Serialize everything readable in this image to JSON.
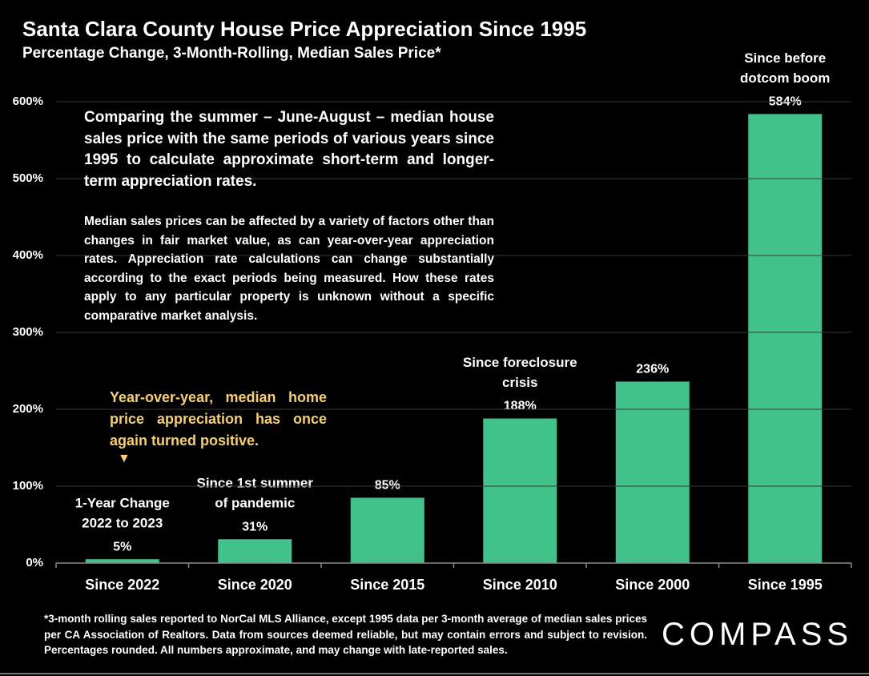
{
  "chart_data": {
    "type": "bar",
    "title": "Santa Clara County House Price Appreciation Since 1995",
    "subtitle": "Percentage Change, 3-Month-Rolling, Median Sales Price*",
    "categories": [
      "Since 2022",
      "Since 2020",
      "Since 2015",
      "Since 2010",
      "Since 2000",
      "Since 1995"
    ],
    "values": [
      5,
      31,
      85,
      188,
      236,
      584
    ],
    "value_labels": [
      "5%",
      "31%",
      "85%",
      "188%",
      "236%",
      "584%"
    ],
    "bar_annotations": [
      [
        "1-Year Change",
        "2022 to 2023"
      ],
      [
        "Since 1st summer",
        "of pandemic"
      ],
      null,
      [
        "Since foreclosure",
        "crisis"
      ],
      null,
      [
        "Since before",
        "dotcom boom"
      ]
    ],
    "color": "#40c28a",
    "ylim": [
      0,
      600
    ],
    "yticks": [
      {
        "value": 0,
        "label": "0%"
      },
      {
        "value": 100,
        "label": "100%"
      },
      {
        "value": 200,
        "label": "200%"
      },
      {
        "value": 300,
        "label": "300%"
      },
      {
        "value": 400,
        "label": "400%"
      },
      {
        "value": 500,
        "label": "500%"
      },
      {
        "value": 600,
        "label": "600%"
      }
    ],
    "grid": true,
    "notes": [
      "Comparing the summer – June-August – median house sales price with the same periods of various years since 1995 to calculate approximate short-term and longer-term appreciation rates.",
      "Median sales prices can be affected by a variety of factors other than changes in fair market value, as can year-over-year appreciation rates. Appreciation rate calculations can change substantially according to the exact periods being measured. How these rates apply to any particular property is unknown without a specific comparative market analysis."
    ],
    "callout": "Year-over-year, median home price appreciation has once again turned positive.",
    "footnote": "*3-month rolling sales reported to NorCal MLS Alliance, except 1995 data per 3-month average of median sales prices per CA Association of Realtors. Data from sources deemed reliable, but may contain errors and subject to revision. Percentages rounded. All numbers approximate, and may change with late-reported sales.",
    "logo": "COMPASS"
  }
}
